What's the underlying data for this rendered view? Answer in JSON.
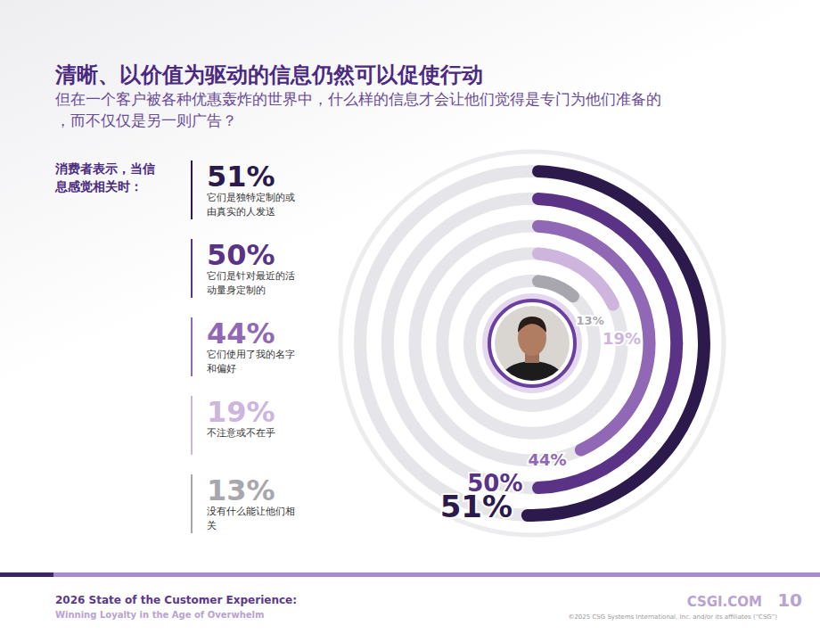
{
  "chart_data": {
    "type": "radial_bar",
    "title": "清晰、以价值为驱动的信息仍然可以促使行动",
    "subtitle": "但在一个客户被各种优惠轰炸的世界中，什么样的信息才会让他们觉得是专门为他们准备的，而不仅仅是另一则广告？",
    "label_heading": "消费者表示，当信息感觉相关时：",
    "categories": [
      "它们是独特定制的或由真实的人发送",
      "它们是针对最近的活动量身定制的",
      "它们使用了我的名字和偏好",
      "不注意或不在乎",
      "没有什么能让他们相关"
    ],
    "values": [
      51,
      50,
      44,
      19,
      13
    ],
    "value_labels": [
      "51%",
      "50%",
      "44%",
      "19%",
      "13%"
    ],
    "colors": [
      "#2b1a4b",
      "#5a3387",
      "#9068b6",
      "#cdb5de",
      "#a7a7ad"
    ],
    "ylim": [
      0,
      100
    ],
    "tick_labels": false,
    "data_labels": true
  },
  "footer": {
    "title": "2026 State of the Customer Experience:",
    "subtitle": "Winning Loyalty in the Age of Overwhelm",
    "site": "CSGI.COM",
    "page": "10",
    "copyright": "©2025 CSG Systems International, Inc. and/or its affiliates (“CSG”)"
  }
}
